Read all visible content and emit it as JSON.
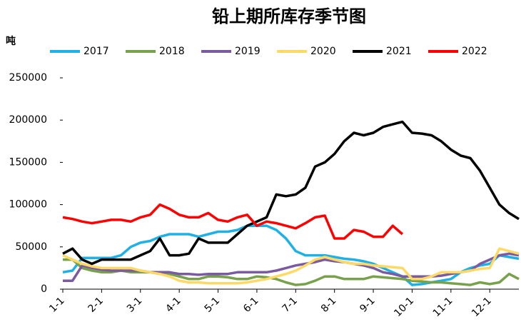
{
  "chart_data": {
    "type": "line",
    "title": "铅上期所库存季节图",
    "y_label": "吨",
    "categories": [
      "1-1",
      null,
      null,
      null,
      "2-1",
      null,
      null,
      null,
      "3-1",
      null,
      null,
      null,
      "4-1",
      null,
      null,
      null,
      "5-1",
      null,
      null,
      null,
      "6-1",
      null,
      null,
      null,
      "7-1",
      null,
      null,
      null,
      "8-1",
      null,
      null,
      null,
      "9-1",
      null,
      null,
      null,
      "10-1",
      null,
      null,
      null,
      "11-1",
      null,
      null,
      null,
      "12-1",
      null,
      null,
      null
    ],
    "ylim": [
      0,
      250000
    ],
    "yticks": [
      0,
      50000,
      100000,
      150000,
      200000,
      250000
    ],
    "grid": false,
    "series": [
      {
        "name": "2017",
        "color": "#1fb0e6",
        "values": [
          20000,
          22000,
          37000,
          37000,
          37000,
          37000,
          40000,
          50000,
          55000,
          57000,
          62000,
          65000,
          65000,
          65000,
          62000,
          65000,
          68000,
          68000,
          70000,
          75000,
          75000,
          75000,
          70000,
          60000,
          45000,
          40000,
          40000,
          40000,
          38000,
          36000,
          35000,
          33000,
          30000,
          25000,
          20000,
          15000,
          5000,
          6000,
          8000,
          10000,
          12000,
          20000,
          25000,
          28000,
          30000,
          40000,
          38000,
          36000
        ]
      },
      {
        "name": "2018",
        "color": "#77a14a",
        "values": [
          35000,
          35000,
          25000,
          22000,
          20000,
          20000,
          22000,
          20000,
          20000,
          20000,
          18000,
          18000,
          15000,
          12000,
          12000,
          15000,
          15000,
          14000,
          12000,
          12000,
          15000,
          14000,
          12000,
          8000,
          5000,
          6000,
          10000,
          15000,
          15000,
          12000,
          12000,
          12000,
          15000,
          14000,
          13000,
          12000,
          10000,
          9000,
          8000,
          8000,
          7000,
          6000,
          5000,
          8000,
          6000,
          8000,
          18000,
          12000
        ]
      },
      {
        "name": "2019",
        "color": "#7a5aa0",
        "values": [
          10000,
          10000,
          28000,
          25000,
          23000,
          22000,
          22000,
          22000,
          22000,
          20000,
          20000,
          20000,
          18000,
          18000,
          17000,
          18000,
          18000,
          18000,
          20000,
          20000,
          20000,
          20000,
          22000,
          25000,
          28000,
          30000,
          32000,
          35000,
          33000,
          32000,
          30000,
          28000,
          25000,
          20000,
          18000,
          15000,
          15000,
          15000,
          15000,
          16000,
          18000,
          20000,
          22000,
          30000,
          35000,
          40000,
          42000,
          40000
        ]
      },
      {
        "name": "2020",
        "color": "#ffd966",
        "values": [
          40000,
          35000,
          30000,
          27000,
          25000,
          25000,
          25000,
          25000,
          22000,
          20000,
          18000,
          15000,
          10000,
          8000,
          8000,
          7000,
          7000,
          7000,
          7000,
          8000,
          10000,
          12000,
          15000,
          18000,
          22000,
          28000,
          35000,
          38000,
          35000,
          32000,
          30000,
          30000,
          28000,
          27000,
          26000,
          25000,
          12000,
          12000,
          15000,
          20000,
          20000,
          20000,
          22000,
          24000,
          25000,
          48000,
          45000,
          42000
        ]
      },
      {
        "name": "2021",
        "color": "#000000",
        "values": [
          42000,
          48000,
          35000,
          30000,
          35000,
          35000,
          35000,
          35000,
          40000,
          45000,
          60000,
          40000,
          40000,
          42000,
          60000,
          55000,
          55000,
          55000,
          65000,
          75000,
          80000,
          85000,
          112000,
          110000,
          112000,
          120000,
          145000,
          150000,
          160000,
          175000,
          185000,
          182000,
          185000,
          192000,
          195000,
          198000,
          185000,
          184000,
          182000,
          175000,
          165000,
          158000,
          155000,
          140000,
          120000,
          100000,
          90000,
          83000
        ]
      },
      {
        "name": "2022",
        "color": "#ff0000",
        "values": [
          85000,
          83000,
          80000,
          78000,
          80000,
          82000,
          82000,
          80000,
          85000,
          88000,
          100000,
          95000,
          88000,
          85000,
          85000,
          90000,
          82000,
          80000,
          85000,
          88000,
          75000,
          80000,
          78000,
          75000,
          72000,
          78000,
          85000,
          87000,
          60000,
          60000,
          70000,
          68000,
          62000,
          62000,
          75000,
          65000,
          null,
          null,
          null,
          null,
          null,
          null,
          null,
          null,
          null,
          null,
          null,
          null
        ]
      }
    ]
  }
}
